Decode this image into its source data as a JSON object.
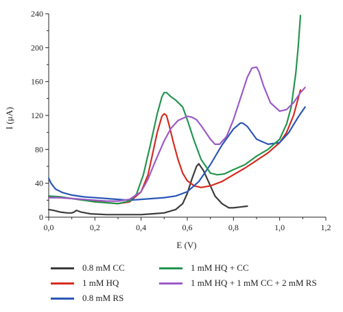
{
  "chart_data": {
    "type": "line",
    "xlabel": "E (V)",
    "ylabel": "I (μA)",
    "xlim": [
      0.0,
      1.2
    ],
    "ylim": [
      0,
      240
    ],
    "x_ticks": [
      0.0,
      0.2,
      0.4,
      0.6,
      0.8,
      1.0,
      1.2
    ],
    "x_tick_labels": [
      "0,0",
      "0,2",
      "0,4",
      "0,6",
      "0,8",
      "1,0",
      "1,2"
    ],
    "y_ticks": [
      0,
      40,
      80,
      120,
      160,
      200,
      240
    ],
    "y_tick_labels": [
      "0",
      "40",
      "80",
      "120",
      "160",
      "200",
      "240"
    ],
    "legend_position": "bottom",
    "series": [
      {
        "name": "0.8 mM CC",
        "color": "#3a3a3a",
        "x": [
          0.0,
          0.02,
          0.05,
          0.08,
          0.1,
          0.11,
          0.12,
          0.14,
          0.18,
          0.25,
          0.3,
          0.35,
          0.4,
          0.45,
          0.5,
          0.55,
          0.58,
          0.6,
          0.62,
          0.64,
          0.65,
          0.67,
          0.7,
          0.72,
          0.75,
          0.78,
          0.8,
          0.83,
          0.86
        ],
        "y": [
          9,
          8,
          6,
          5,
          5,
          6,
          8,
          6,
          4,
          3,
          3,
          3,
          3,
          4,
          5,
          9,
          16,
          28,
          45,
          60,
          63,
          55,
          37,
          25,
          16,
          11,
          11,
          12,
          13
        ]
      },
      {
        "name": "1 mM HQ",
        "color": "#d42a1f",
        "x": [
          0.0,
          0.05,
          0.1,
          0.15,
          0.2,
          0.25,
          0.3,
          0.35,
          0.4,
          0.43,
          0.45,
          0.47,
          0.49,
          0.5,
          0.51,
          0.52,
          0.54,
          0.56,
          0.58,
          0.6,
          0.63,
          0.66,
          0.7,
          0.75,
          0.8,
          0.85,
          0.9,
          0.95,
          1.0,
          1.03,
          1.06,
          1.09
        ],
        "y": [
          24,
          23,
          22,
          20,
          19,
          17,
          16,
          18,
          30,
          50,
          75,
          100,
          119,
          122,
          120,
          110,
          88,
          68,
          52,
          43,
          37,
          35,
          37,
          42,
          50,
          58,
          67,
          76,
          88,
          100,
          120,
          150
        ]
      },
      {
        "name": "0.8 mM RS",
        "color": "#2a56b5",
        "x": [
          0.0,
          0.01,
          0.03,
          0.06,
          0.1,
          0.15,
          0.2,
          0.25,
          0.3,
          0.35,
          0.4,
          0.45,
          0.5,
          0.55,
          0.6,
          0.65,
          0.7,
          0.75,
          0.8,
          0.83,
          0.84,
          0.86,
          0.9,
          0.95,
          1.0,
          1.04,
          1.08,
          1.11
        ],
        "y": [
          46,
          40,
          33,
          29,
          26,
          24,
          23,
          22,
          21,
          20,
          21,
          22,
          23,
          25,
          30,
          42,
          62,
          85,
          104,
          111,
          111,
          107,
          92,
          86,
          88,
          100,
          118,
          130
        ]
      },
      {
        "name": "1 mM HQ + CC",
        "color": "#23944e",
        "x": [
          0.0,
          0.05,
          0.1,
          0.15,
          0.2,
          0.25,
          0.3,
          0.35,
          0.38,
          0.41,
          0.44,
          0.47,
          0.49,
          0.5,
          0.51,
          0.53,
          0.55,
          0.58,
          0.6,
          0.63,
          0.66,
          0.7,
          0.73,
          0.76,
          0.8,
          0.85,
          0.9,
          0.95,
          1.0,
          1.03,
          1.05,
          1.07,
          1.08,
          1.09
        ],
        "y": [
          25,
          24,
          22,
          20,
          18,
          17,
          16,
          19,
          27,
          50,
          85,
          122,
          142,
          147,
          147,
          142,
          138,
          130,
          115,
          90,
          68,
          52,
          50,
          51,
          56,
          62,
          72,
          80,
          92,
          110,
          130,
          170,
          200,
          238
        ]
      },
      {
        "name": "1 mM HQ + 1 mM CC + 2 mM RS",
        "color": "#9b59c6",
        "x": [
          0.0,
          0.05,
          0.1,
          0.15,
          0.2,
          0.25,
          0.3,
          0.35,
          0.4,
          0.43,
          0.46,
          0.5,
          0.53,
          0.56,
          0.6,
          0.62,
          0.64,
          0.66,
          0.7,
          0.72,
          0.74,
          0.77,
          0.8,
          0.83,
          0.86,
          0.88,
          0.9,
          0.91,
          0.93,
          0.96,
          1.0,
          1.03,
          1.06,
          1.09,
          1.11
        ],
        "y": [
          23,
          23,
          22,
          21,
          20,
          19,
          19,
          21,
          30,
          45,
          65,
          90,
          105,
          114,
          119,
          118,
          115,
          108,
          92,
          86,
          86,
          95,
          115,
          140,
          165,
          176,
          177,
          172,
          155,
          135,
          125,
          127,
          135,
          147,
          153
        ]
      }
    ]
  }
}
